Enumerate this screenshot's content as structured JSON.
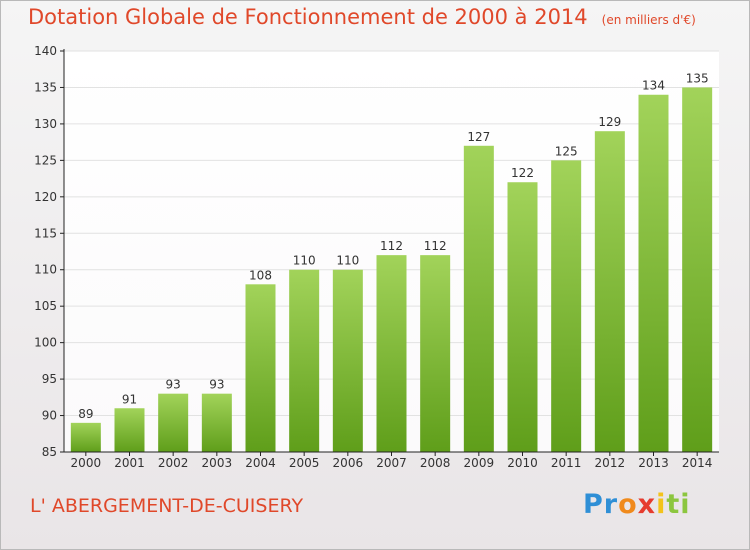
{
  "header": {
    "title": "Dotation Globale de Fonctionnement de 2000 à 2014",
    "unit": "(en milliers d'€)"
  },
  "footer": {
    "commune": "L' ABERGEMENT-DE-CUISERY",
    "brand": "Proxiti",
    "brand_parts": [
      "Pr",
      "o",
      "x",
      "i",
      "ti"
    ]
  },
  "colors": {
    "title": "#e0482a",
    "bar_top": "#a2d35a",
    "bar_bottom": "#5f9e1a",
    "axis": "#222222",
    "grid": "#e2e2e2"
  },
  "chart_data": {
    "type": "bar",
    "title": "Dotation Globale de Fonctionnement de 2000 à 2014",
    "xlabel": "",
    "ylabel": "",
    "categories": [
      "2000",
      "2001",
      "2002",
      "2003",
      "2004",
      "2005",
      "2006",
      "2007",
      "2008",
      "2009",
      "2010",
      "2011",
      "2012",
      "2013",
      "2014"
    ],
    "values": [
      89,
      91,
      93,
      93,
      108,
      110,
      110,
      112,
      112,
      127,
      122,
      125,
      129,
      134,
      135
    ],
    "data_labels": [
      "89",
      "91",
      "93",
      "93",
      "108",
      "110",
      "110",
      "112",
      "112",
      "127",
      "122",
      "125",
      "129",
      "134",
      "135"
    ],
    "ylim": [
      85,
      140
    ],
    "yticks": [
      85,
      90,
      95,
      100,
      105,
      110,
      115,
      120,
      125,
      130,
      135,
      140
    ],
    "grid": true,
    "legend": "none"
  }
}
